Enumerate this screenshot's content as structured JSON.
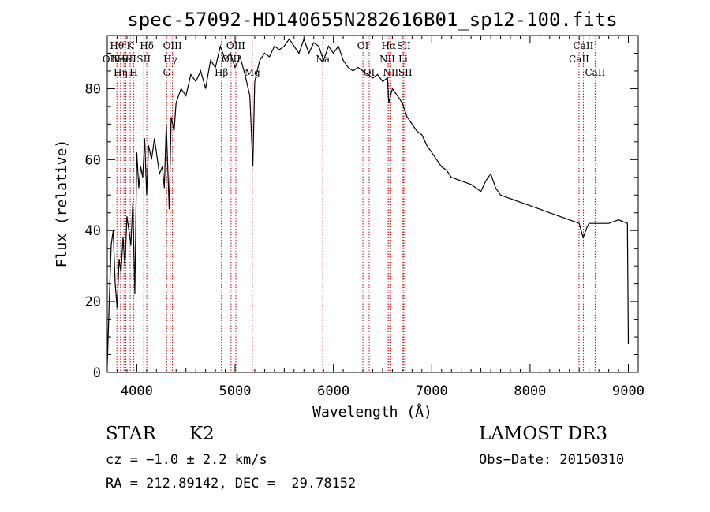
{
  "chart_data": {
    "type": "line",
    "title": "spec-57092-HD140655N282616B01_sp12-100.fits",
    "xlabel": "Wavelength (Å)",
    "ylabel": "Flux (relative)",
    "xlim": [
      3700,
      9100
    ],
    "ylim": [
      0,
      95
    ],
    "xticks": [
      4000,
      5000,
      6000,
      7000,
      8000,
      9000
    ],
    "yticks": [
      0,
      20,
      40,
      60,
      80
    ],
    "grid": false,
    "legend": "none",
    "line_color": "#000000",
    "marker_color": "#cc0000",
    "series": [
      {
        "x": [
          3700,
          3720,
          3740,
          3760,
          3780,
          3800,
          3820,
          3840,
          3860,
          3880,
          3900,
          3920,
          3940,
          3960,
          3980,
          4000,
          4020,
          4040,
          4060,
          4080,
          4100,
          4120,
          4150,
          4180,
          4200,
          4230,
          4260,
          4280,
          4300,
          4330,
          4350,
          4380,
          4400,
          4450,
          4500,
          4550,
          4600,
          4650,
          4700,
          4750,
          4800,
          4850,
          4900,
          4950,
          5000,
          5050,
          5100,
          5150,
          5180,
          5200,
          5250,
          5300,
          5350,
          5400,
          5450,
          5500,
          5550,
          5600,
          5650,
          5700,
          5750,
          5800,
          5850,
          5900,
          5950,
          6000,
          6050,
          6100,
          6150,
          6200,
          6250,
          6300,
          6350,
          6400,
          6450,
          6500,
          6550,
          6563,
          6600,
          6650,
          6700,
          6750,
          6800,
          6850,
          6900,
          6950,
          7000,
          7050,
          7100,
          7150,
          7200,
          7300,
          7400,
          7500,
          7550,
          7600,
          7650,
          7700,
          7800,
          7900,
          8000,
          8100,
          8200,
          8300,
          8400,
          8500,
          8540,
          8580,
          8600,
          8700,
          8800,
          8900,
          8990,
          9000
        ],
        "y": [
          2,
          20,
          36,
          40,
          25,
          18,
          32,
          28,
          38,
          30,
          44,
          40,
          36,
          48,
          22,
          62,
          52,
          58,
          55,
          66,
          50,
          64,
          60,
          66,
          62,
          56,
          58,
          52,
          70,
          46,
          72,
          68,
          76,
          80,
          78,
          84,
          82,
          85,
          80,
          88,
          86,
          92,
          88,
          90,
          86,
          89,
          84,
          78,
          58,
          82,
          88,
          90,
          89,
          92,
          91,
          92,
          94,
          92,
          90,
          94,
          90,
          93,
          92,
          88,
          92,
          90,
          92,
          88,
          86,
          85,
          86,
          85,
          84,
          83,
          84,
          82,
          83,
          76,
          80,
          78,
          76,
          72,
          70,
          68,
          67,
          64,
          62,
          60,
          58,
          57,
          55,
          54,
          53,
          51,
          54,
          56,
          52,
          50,
          49,
          48,
          47,
          46,
          45,
          44,
          43,
          42,
          38,
          41,
          42,
          42,
          42,
          43,
          42,
          8
        ]
      }
    ],
    "lines": [
      {
        "w": 3727,
        "label": "OII",
        "row": 1
      },
      {
        "w": 3798,
        "label": "Hθ",
        "row": 0
      },
      {
        "w": 3835,
        "label": "Hη",
        "row": 2
      },
      {
        "w": 3869,
        "label": "NeIII",
        "row": 1
      },
      {
        "w": 3889,
        "label": "HeI",
        "row": 1
      },
      {
        "w": 3933,
        "label": "K",
        "row": 0
      },
      {
        "w": 3968,
        "label": "H",
        "row": 2
      },
      {
        "w": 4071,
        "label": "SII",
        "row": 1
      },
      {
        "w": 4102,
        "label": "Hδ",
        "row": 0
      },
      {
        "w": 4304,
        "label": "G",
        "row": 2
      },
      {
        "w": 4340,
        "label": "Hγ",
        "row": 1
      },
      {
        "w": 4363,
        "label": "OIII",
        "row": 0
      },
      {
        "w": 4861,
        "label": "Hβ",
        "row": 2
      },
      {
        "w": 4959,
        "label": "OIII",
        "row": 1
      },
      {
        "w": 5007,
        "label": "OIII",
        "row": 0
      },
      {
        "w": 5175,
        "label": "Mg",
        "row": 2
      },
      {
        "w": 5892,
        "label": "Na",
        "row": 1
      },
      {
        "w": 6300,
        "label": "OI",
        "row": 0
      },
      {
        "w": 6364,
        "label": "OI",
        "row": 2
      },
      {
        "w": 6548,
        "label": "NII",
        "row": 1
      },
      {
        "w": 6563,
        "label": "Hα",
        "row": 0
      },
      {
        "w": 6583,
        "label": "NII",
        "row": 2
      },
      {
        "w": 6708,
        "label": "Li",
        "row": 1
      },
      {
        "w": 6716,
        "label": "SII",
        "row": 0
      },
      {
        "w": 6731,
        "label": "SII",
        "row": 2
      },
      {
        "w": 8498,
        "label": "CaII",
        "row": 1
      },
      {
        "w": 8542,
        "label": "CaII",
        "row": 0
      },
      {
        "w": 8662,
        "label": "CaII",
        "row": 2
      }
    ]
  },
  "info": {
    "object_class": "STAR",
    "subclass": "K2",
    "redshift": "cz = −1.0 ± 2.2 km/s",
    "coords": "RA = 212.89142, DEC =  29.78152",
    "survey": "LAMOST DR3",
    "obs_date": "Obs−Date: 20150310"
  }
}
